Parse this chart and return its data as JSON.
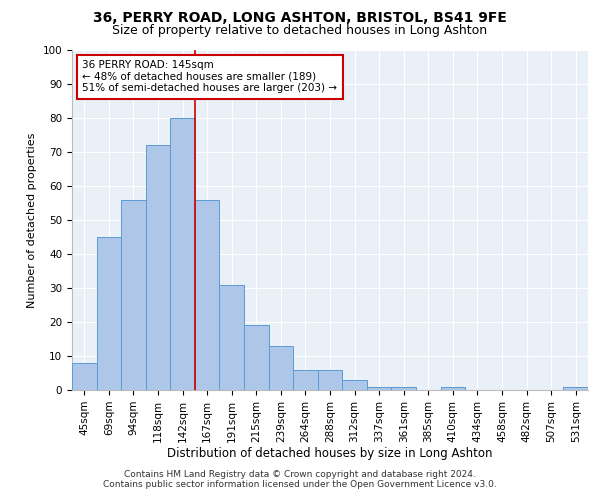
{
  "title": "36, PERRY ROAD, LONG ASHTON, BRISTOL, BS41 9FE",
  "subtitle": "Size of property relative to detached houses in Long Ashton",
  "xlabel": "Distribution of detached houses by size in Long Ashton",
  "ylabel": "Number of detached properties",
  "categories": [
    "45sqm",
    "69sqm",
    "94sqm",
    "118sqm",
    "142sqm",
    "167sqm",
    "191sqm",
    "215sqm",
    "239sqm",
    "264sqm",
    "288sqm",
    "312sqm",
    "337sqm",
    "361sqm",
    "385sqm",
    "410sqm",
    "434sqm",
    "458sqm",
    "482sqm",
    "507sqm",
    "531sqm"
  ],
  "values": [
    8,
    45,
    56,
    72,
    80,
    56,
    31,
    19,
    13,
    6,
    6,
    3,
    1,
    1,
    0,
    1,
    0,
    0,
    0,
    0,
    1
  ],
  "bar_color": "#aec6e8",
  "bar_edge_color": "#5b9bd5",
  "bar_width": 1.0,
  "property_label": "36 PERRY ROAD: 145sqm",
  "annotation_line1": "← 48% of detached houses are smaller (189)",
  "annotation_line2": "51% of semi-detached houses are larger (203) →",
  "annotation_box_color": "#ffffff",
  "annotation_box_edge_color": "#cc0000",
  "vline_color": "#cc0000",
  "vline_x": 4.5,
  "ylim": [
    0,
    100
  ],
  "yticks": [
    0,
    10,
    20,
    30,
    40,
    50,
    60,
    70,
    80,
    90,
    100
  ],
  "bg_color": "#eaf0f8",
  "footnote1": "Contains HM Land Registry data © Crown copyright and database right 2024.",
  "footnote2": "Contains public sector information licensed under the Open Government Licence v3.0.",
  "title_fontsize": 10,
  "subtitle_fontsize": 9,
  "xlabel_fontsize": 8.5,
  "ylabel_fontsize": 8,
  "tick_fontsize": 7.5,
  "annotation_fontsize": 7.5,
  "footnote_fontsize": 6.5
}
